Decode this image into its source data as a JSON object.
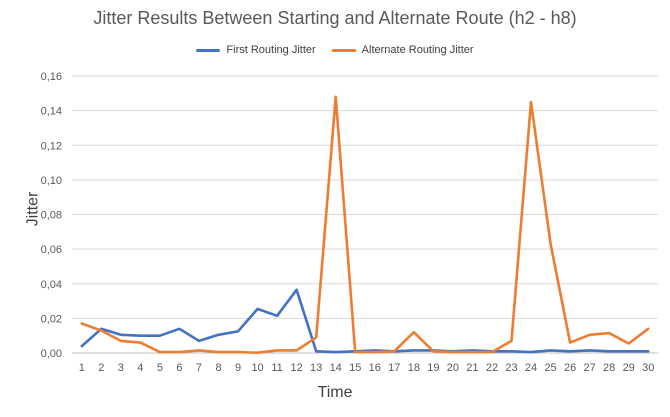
{
  "chart_data": {
    "type": "line",
    "title": "Jitter Results Between Starting and Alternate Route (h2 - h8)",
    "xlabel": "Time",
    "ylabel": "Jitter",
    "x": [
      "1",
      "2",
      "3",
      "4",
      "5",
      "6",
      "7",
      "8",
      "9",
      "10",
      "11",
      "12",
      "13",
      "14",
      "15",
      "16",
      "17",
      "18",
      "19",
      "20",
      "21",
      "22",
      "23",
      "24",
      "25",
      "26",
      "27",
      "28",
      "29",
      "30"
    ],
    "ylim": [
      0,
      0.16
    ],
    "yticks": [
      "0,00",
      "0,02",
      "0,04",
      "0,06",
      "0,08",
      "0,10",
      "0,12",
      "0,14",
      "0,16"
    ],
    "grid": true,
    "legend_position": "top",
    "series": [
      {
        "name": "First Routing Jitter",
        "color": "#4472C4",
        "values": [
          0.004,
          0.014,
          0.0105,
          0.01,
          0.01,
          0.014,
          0.007,
          0.0105,
          0.0125,
          0.0255,
          0.0215,
          0.0365,
          0.001,
          0.0005,
          0.001,
          0.0015,
          0.001,
          0.0015,
          0.0015,
          0.001,
          0.0015,
          0.001,
          0.001,
          0.0005,
          0.0015,
          0.001,
          0.0015,
          0.001,
          0.001,
          0.001
        ]
      },
      {
        "name": "Alternate Routing Jitter",
        "color": "#ED7D31",
        "values": [
          0.017,
          0.013,
          0.007,
          0.006,
          0.0005,
          0.0005,
          0.0015,
          0.0005,
          0.0005,
          0.0002,
          0.0015,
          0.0015,
          0.009,
          0.148,
          0.0005,
          0.0005,
          0.001,
          0.012,
          0.001,
          0.0005,
          0.0005,
          0.0005,
          0.007,
          0.145,
          0.063,
          0.006,
          0.0105,
          0.0115,
          0.0055,
          0.014
        ]
      }
    ]
  }
}
